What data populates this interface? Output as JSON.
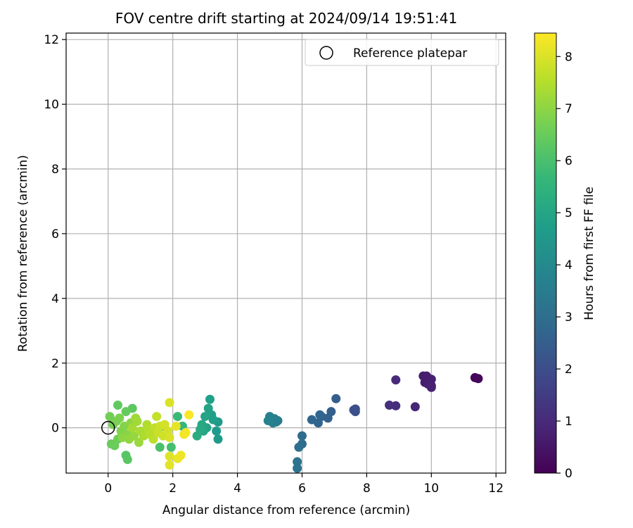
{
  "chart_data": {
    "type": "scatter",
    "title": "FOV centre drift starting at 2024/09/14 19:51:41",
    "xlabel": "Angular distance from reference (arcmin)",
    "ylabel": "Rotation from reference (arcmin)",
    "xlim": [
      -1.3,
      12.3
    ],
    "ylim": [
      -1.4,
      12.2
    ],
    "xticks": [
      0,
      2,
      4,
      6,
      8,
      10,
      12
    ],
    "yticks": [
      0,
      2,
      4,
      6,
      8,
      10,
      12
    ],
    "grid": true,
    "legend": {
      "location": "top-right",
      "label": "Reference platepar"
    },
    "reference_point": {
      "x": 0,
      "y": 0
    },
    "colorbar": {
      "label": "Hours from first FF file",
      "range": [
        0,
        8.45
      ],
      "ticks": [
        0,
        1,
        2,
        3,
        4,
        5,
        6,
        7,
        8
      ],
      "colormap": "viridis",
      "colors": [
        "#440154",
        "#482878",
        "#3e4989",
        "#31688e",
        "#26828e",
        "#1f9e89",
        "#35b779",
        "#6ece58",
        "#b5de2b",
        "#fde725"
      ]
    },
    "points": [
      {
        "x": 11.35,
        "y": 1.55,
        "h": 0.1
      },
      {
        "x": 11.45,
        "y": 1.52,
        "h": 0.15
      },
      {
        "x": 10.0,
        "y": 1.3,
        "h": 0.6
      },
      {
        "x": 9.95,
        "y": 1.45,
        "h": 0.62
      },
      {
        "x": 9.85,
        "y": 1.6,
        "h": 0.65
      },
      {
        "x": 9.75,
        "y": 1.6,
        "h": 0.68
      },
      {
        "x": 9.8,
        "y": 1.4,
        "h": 0.7
      },
      {
        "x": 10.0,
        "y": 1.5,
        "h": 0.72
      },
      {
        "x": 9.9,
        "y": 1.35,
        "h": 0.75
      },
      {
        "x": 10.0,
        "y": 1.25,
        "h": 0.78
      },
      {
        "x": 9.5,
        "y": 0.65,
        "h": 0.9
      },
      {
        "x": 8.9,
        "y": 1.48,
        "h": 1.0
      },
      {
        "x": 8.9,
        "y": 0.68,
        "h": 1.1
      },
      {
        "x": 8.7,
        "y": 0.7,
        "h": 1.15
      },
      {
        "x": 7.65,
        "y": 0.58,
        "h": 2.0
      },
      {
        "x": 7.6,
        "y": 0.55,
        "h": 2.05
      },
      {
        "x": 7.65,
        "y": 0.5,
        "h": 2.1
      },
      {
        "x": 7.05,
        "y": 0.9,
        "h": 2.5
      },
      {
        "x": 6.9,
        "y": 0.5,
        "h": 2.55
      },
      {
        "x": 6.8,
        "y": 0.3,
        "h": 2.6
      },
      {
        "x": 6.6,
        "y": 0.35,
        "h": 2.65
      },
      {
        "x": 6.5,
        "y": 0.15,
        "h": 2.7
      },
      {
        "x": 6.55,
        "y": 0.4,
        "h": 2.75
      },
      {
        "x": 6.3,
        "y": 0.25,
        "h": 2.8
      },
      {
        "x": 6.0,
        "y": -0.25,
        "h": 3.0
      },
      {
        "x": 6.0,
        "y": -0.5,
        "h": 3.05
      },
      {
        "x": 5.9,
        "y": -0.6,
        "h": 3.1
      },
      {
        "x": 5.85,
        "y": -1.05,
        "h": 3.2
      },
      {
        "x": 5.85,
        "y": -1.25,
        "h": 3.25
      },
      {
        "x": 5.25,
        "y": 0.22,
        "h": 3.5
      },
      {
        "x": 5.2,
        "y": 0.18,
        "h": 3.55
      },
      {
        "x": 5.15,
        "y": 0.28,
        "h": 3.6
      },
      {
        "x": 5.1,
        "y": 0.15,
        "h": 3.62
      },
      {
        "x": 5.05,
        "y": 0.25,
        "h": 3.65
      },
      {
        "x": 5.0,
        "y": 0.35,
        "h": 3.7
      },
      {
        "x": 4.95,
        "y": 0.22,
        "h": 3.75
      },
      {
        "x": 3.4,
        "y": 0.18,
        "h": 4.5
      },
      {
        "x": 3.35,
        "y": -0.1,
        "h": 4.55
      },
      {
        "x": 3.4,
        "y": -0.35,
        "h": 4.6
      },
      {
        "x": 3.25,
        "y": 0.25,
        "h": 4.7
      },
      {
        "x": 3.2,
        "y": 0.4,
        "h": 4.75
      },
      {
        "x": 3.15,
        "y": 0.88,
        "h": 4.8
      },
      {
        "x": 3.1,
        "y": 0.6,
        "h": 4.85
      },
      {
        "x": 3.05,
        "y": 0.0,
        "h": 4.9
      },
      {
        "x": 3.0,
        "y": 0.35,
        "h": 4.95
      },
      {
        "x": 2.95,
        "y": -0.1,
        "h": 5.0
      },
      {
        "x": 2.9,
        "y": 0.1,
        "h": 5.05
      },
      {
        "x": 2.85,
        "y": -0.05,
        "h": 5.1
      },
      {
        "x": 2.75,
        "y": -0.25,
        "h": 5.2
      },
      {
        "x": 2.3,
        "y": 0.05,
        "h": 5.6
      },
      {
        "x": 2.15,
        "y": 0.35,
        "h": 5.7
      },
      {
        "x": 1.95,
        "y": -0.6,
        "h": 5.9
      },
      {
        "x": 1.6,
        "y": -0.6,
        "h": 6.0
      },
      {
        "x": 1.7,
        "y": 0.05,
        "h": 6.1
      },
      {
        "x": 0.55,
        "y": -0.85,
        "h": 6.2
      },
      {
        "x": 0.6,
        "y": -0.98,
        "h": 6.25
      },
      {
        "x": 0.75,
        "y": 0.6,
        "h": 6.3
      },
      {
        "x": 0.3,
        "y": 0.7,
        "h": 6.35
      },
      {
        "x": 0.55,
        "y": 0.5,
        "h": 6.4
      },
      {
        "x": 0.1,
        "y": -0.5,
        "h": 6.45
      },
      {
        "x": 0.2,
        "y": -0.55,
        "h": 6.5
      },
      {
        "x": 0.3,
        "y": -0.35,
        "h": 6.55
      },
      {
        "x": 0.05,
        "y": 0.35,
        "h": 6.6
      },
      {
        "x": 0.15,
        "y": 0.1,
        "h": 6.65
      },
      {
        "x": 0.25,
        "y": 0.2,
        "h": 6.7
      },
      {
        "x": 0.35,
        "y": 0.3,
        "h": 6.75
      },
      {
        "x": 0.4,
        "y": -0.1,
        "h": 6.8
      },
      {
        "x": 0.5,
        "y": 0.05,
        "h": 6.85
      },
      {
        "x": 0.6,
        "y": -0.2,
        "h": 6.9
      },
      {
        "x": 0.7,
        "y": 0.15,
        "h": 6.95
      },
      {
        "x": 0.45,
        "y": -0.3,
        "h": 7.0
      },
      {
        "x": 0.65,
        "y": -0.35,
        "h": 7.05
      },
      {
        "x": 0.8,
        "y": -0.25,
        "h": 7.1
      },
      {
        "x": 0.95,
        "y": -0.45,
        "h": 7.15
      },
      {
        "x": 0.85,
        "y": 0.3,
        "h": 7.2
      },
      {
        "x": 0.9,
        "y": 0.2,
        "h": 7.25
      },
      {
        "x": 0.75,
        "y": 0.0,
        "h": 7.3
      },
      {
        "x": 1.0,
        "y": -0.1,
        "h": 7.35
      },
      {
        "x": 1.1,
        "y": -0.25,
        "h": 7.4
      },
      {
        "x": 1.2,
        "y": 0.1,
        "h": 7.45
      },
      {
        "x": 1.25,
        "y": -0.05,
        "h": 7.5
      },
      {
        "x": 1.3,
        "y": -0.2,
        "h": 7.55
      },
      {
        "x": 1.4,
        "y": -0.35,
        "h": 7.6
      },
      {
        "x": 1.45,
        "y": 0.0,
        "h": 7.65
      },
      {
        "x": 1.5,
        "y": 0.35,
        "h": 7.7
      },
      {
        "x": 1.55,
        "y": -0.15,
        "h": 7.75
      },
      {
        "x": 1.6,
        "y": 0.05,
        "h": 7.8
      },
      {
        "x": 1.7,
        "y": -0.25,
        "h": 7.85
      },
      {
        "x": 1.75,
        "y": 0.1,
        "h": 7.88
      },
      {
        "x": 1.85,
        "y": -0.1,
        "h": 7.9
      },
      {
        "x": 1.9,
        "y": -0.3,
        "h": 7.95
      },
      {
        "x": 1.9,
        "y": 0.78,
        "h": 8.0
      },
      {
        "x": 1.9,
        "y": -0.88,
        "h": 8.05
      },
      {
        "x": 1.9,
        "y": -1.15,
        "h": 8.1
      },
      {
        "x": 2.1,
        "y": 0.05,
        "h": 8.15
      },
      {
        "x": 2.15,
        "y": -0.95,
        "h": 8.2
      },
      {
        "x": 2.25,
        "y": -0.85,
        "h": 8.25
      },
      {
        "x": 2.35,
        "y": -0.2,
        "h": 8.3
      },
      {
        "x": 2.4,
        "y": -0.15,
        "h": 8.35
      },
      {
        "x": 2.5,
        "y": 0.4,
        "h": 8.4
      }
    ]
  }
}
